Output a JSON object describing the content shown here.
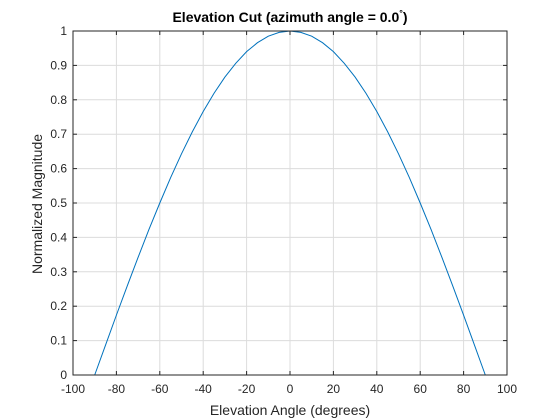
{
  "chart_data": {
    "type": "line",
    "title": "Elevation Cut (azimuth angle = 0.0",
    "title_degree_mark": "°",
    "title_close": ")",
    "xlabel": "Elevation Angle (degrees)",
    "ylabel": "Normalized Magnitude",
    "xlim": [
      -100,
      100
    ],
    "ylim": [
      0,
      1
    ],
    "xticks": [
      -100,
      -80,
      -60,
      -40,
      -20,
      0,
      20,
      40,
      60,
      80,
      100
    ],
    "yticks": [
      0,
      0.1,
      0.2,
      0.3,
      0.4,
      0.5,
      0.6,
      0.7,
      0.8,
      0.9,
      1
    ],
    "xtick_labels": [
      "-100",
      "-80",
      "-60",
      "-40",
      "-20",
      "0",
      "20",
      "40",
      "60",
      "80",
      "100"
    ],
    "ytick_labels": [
      "0",
      "0.1",
      "0.2",
      "0.3",
      "0.4",
      "0.5",
      "0.6",
      "0.7",
      "0.8",
      "0.9",
      "1"
    ],
    "grid": true,
    "series": [
      {
        "color": "#0072bd",
        "x": [
          -90,
          -85,
          -80,
          -75,
          -70,
          -65,
          -60,
          -55,
          -50,
          -45,
          -40,
          -35,
          -30,
          -25,
          -20,
          -15,
          -10,
          -5,
          0,
          5,
          10,
          15,
          20,
          25,
          30,
          35,
          40,
          45,
          50,
          55,
          60,
          65,
          70,
          75,
          80,
          85,
          90
        ],
        "y": [
          0,
          0.087,
          0.174,
          0.259,
          0.342,
          0.423,
          0.5,
          0.574,
          0.643,
          0.707,
          0.766,
          0.819,
          0.866,
          0.906,
          0.94,
          0.966,
          0.985,
          0.996,
          1,
          0.996,
          0.985,
          0.966,
          0.94,
          0.906,
          0.866,
          0.819,
          0.766,
          0.707,
          0.643,
          0.574,
          0.5,
          0.423,
          0.342,
          0.259,
          0.174,
          0.087,
          0
        ]
      }
    ]
  }
}
